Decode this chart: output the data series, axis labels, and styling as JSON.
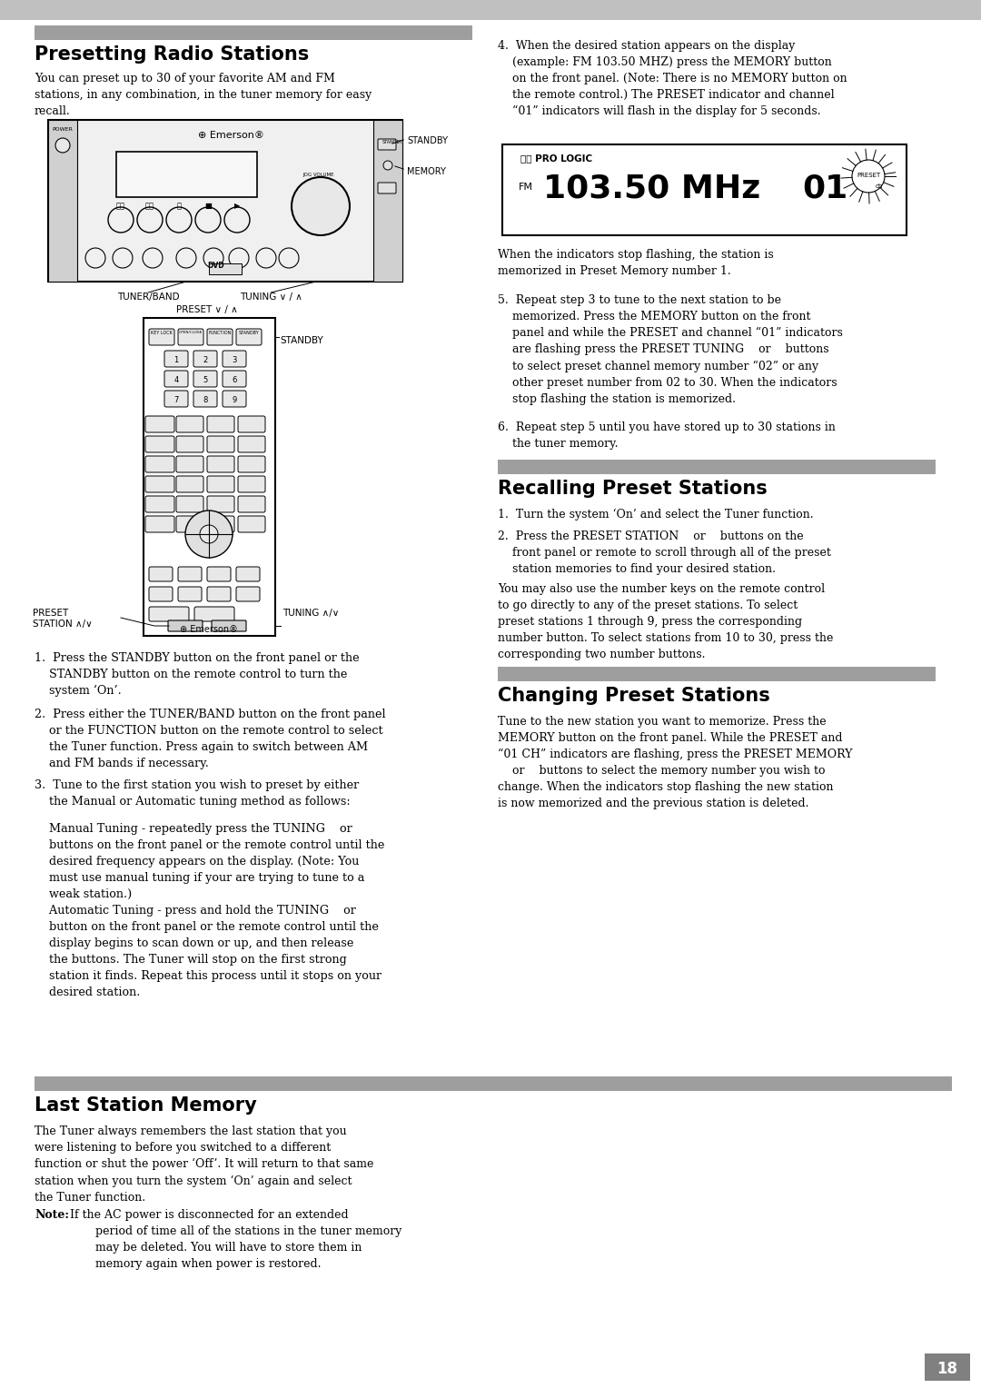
{
  "page_number": "18",
  "background_color": "#ffffff",
  "section1_title": "Presetting Radio Stations",
  "section1_intro": "You can preset up to 30 of your favorite AM and FM\nstations, in any combination, in the tuner memory for easy\nrecall.",
  "step1": "1.  Press the STANDBY button on the front panel or the\n    STANDBY button on the remote control to turn the\n    system ‘On’.",
  "step2": "2.  Press either the TUNER/BAND button on the front panel\n    or the FUNCTION button on the remote control to select\n    the Tuner function. Press again to switch between AM\n    and FM bands if necessary.",
  "step3_head": "3.  Tune to the first station you wish to preset by either\n    the Manual or Automatic tuning method as follows:",
  "step3_manual": "    Manual Tuning - repeatedly press the TUNING    or\n    buttons on the front panel or the remote control until the\n    desired frequency appears on the display. (Note: You\n    must use manual tuning if your are trying to tune to a\n    weak station.)",
  "step3_auto": "    Automatic Tuning - press and hold the TUNING    or\n    button on the front panel or the remote control until the\n    display begins to scan down or up, and then release\n    the buttons. The Tuner will stop on the first strong\n    station it finds. Repeat this process until it stops on your\n    desired station.",
  "step4": "4.  When the desired station appears on the display\n    (example: FM 103.50 MHZ) press the MEMORY button\n    on the front panel. (Note: There is no MEMORY button on\n    the remote control.) The PRESET indicator and channel\n    “01” indicators will flash in the display for 5 seconds.",
  "display_caption": "When the indicators stop flashing, the station is\nmemorized in Preset Memory number 1.",
  "step5": "5.  Repeat step 3 to tune to the next station to be\n    memorized. Press the MEMORY button on the front\n    panel and while the PRESET and channel “01” indicators\n    are flashing press the PRESET TUNING    or    buttons\n    to select preset channel memory number “02” or any\n    other preset number from 02 to 30. When the indicators\n    stop flashing the station is memorized.",
  "step6": "6.  Repeat step 5 until you have stored up to 30 stations in\n    the tuner memory.",
  "section2_title": "Recalling Preset Stations",
  "recall_step1": "1.  Turn the system ‘On’ and select the Tuner function.",
  "recall_step2": "2.  Press the PRESET STATION    or    buttons on the\n    front panel or remote to scroll through all of the preset\n    station memories to find your desired station.",
  "recall_para": "You may also use the number keys on the remote control\nto go directly to any of the preset stations. To select\npreset stations 1 through 9, press the corresponding\nnumber button. To select stations from 10 to 30, press the\ncorresponding two number buttons.",
  "section3_title": "Changing Preset Stations",
  "change_para": "Tune to the new station you want to memorize. Press the\nMEMORY button on the front panel. While the PRESET and\n“01 CH” indicators are flashing, press the PRESET MEMORY\n    or    buttons to select the memory number you wish to\nchange. When the indicators stop flashing the new station\nis now memorized and the previous station is deleted.",
  "section4_title": "Last Station Memory",
  "last_para": "The Tuner always remembers the last station that you\nwere listening to before you switched to a different\nfunction or shut the power ‘Off’. It will return to that same\nstation when you turn the system ‘On’ again and select\nthe Tuner function.",
  "note_bold": "Note:",
  "note_text": " If the AC power is disconnected for an extended\n        period of time all of the stations in the tuner memory\n        may be deleted. You will have to store them in\n        memory again when power is restored.",
  "bar_color": "#9e9e9e",
  "top_bar_color": "#c0c0c0",
  "page_num_bg": "#808080"
}
